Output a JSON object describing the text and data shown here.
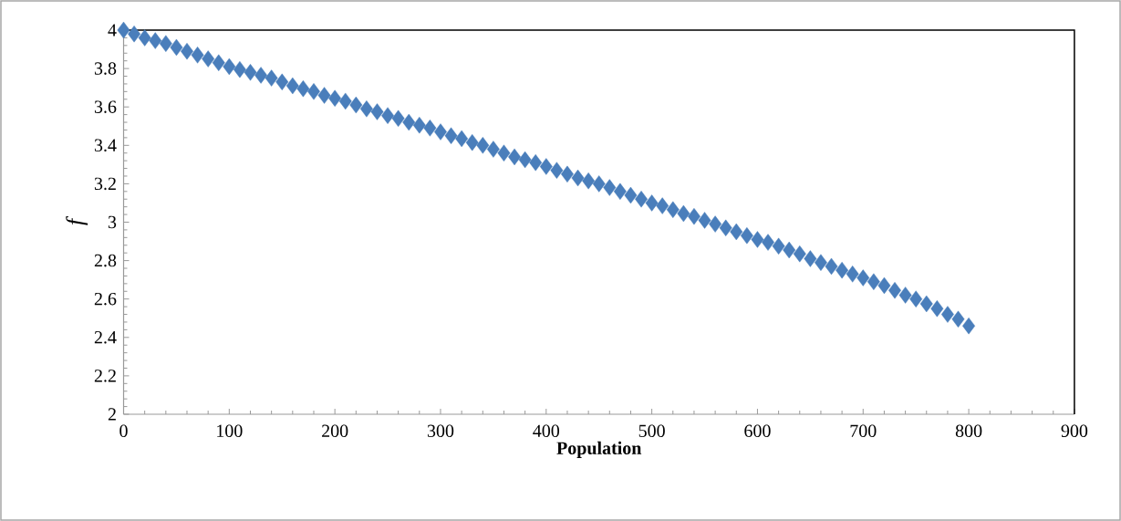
{
  "chart_data": {
    "type": "scatter",
    "xlabel": "Population",
    "ylabel": "f",
    "color": "#4a7ebb",
    "marker": "diamond",
    "xlim": [
      0,
      900
    ],
    "ylim": [
      2,
      4
    ],
    "xticks": [
      0,
      100,
      200,
      300,
      400,
      500,
      600,
      700,
      800,
      900
    ],
    "yticks": [
      2,
      2.2,
      2.4,
      2.6,
      2.8,
      3,
      3.2,
      3.4,
      3.6,
      3.8,
      4
    ],
    "x": [
      0,
      10,
      20,
      30,
      40,
      50,
      60,
      70,
      80,
      90,
      100,
      110,
      120,
      130,
      140,
      150,
      160,
      170,
      180,
      190,
      200,
      210,
      220,
      230,
      240,
      250,
      260,
      270,
      280,
      290,
      300,
      310,
      320,
      330,
      340,
      350,
      360,
      370,
      380,
      390,
      400,
      410,
      420,
      430,
      440,
      450,
      460,
      470,
      480,
      490,
      500,
      510,
      520,
      530,
      540,
      550,
      560,
      570,
      580,
      590,
      600,
      610,
      620,
      630,
      640,
      650,
      660,
      670,
      680,
      690,
      700,
      710,
      720,
      730,
      740,
      750,
      760,
      770,
      780,
      790,
      800
    ],
    "values": [
      4.0,
      3.98,
      3.96,
      3.945,
      3.93,
      3.91,
      3.89,
      3.87,
      3.85,
      3.83,
      3.81,
      3.795,
      3.78,
      3.765,
      3.75,
      3.73,
      3.71,
      3.695,
      3.68,
      3.66,
      3.645,
      3.63,
      3.61,
      3.59,
      3.575,
      3.555,
      3.54,
      3.52,
      3.505,
      3.49,
      3.47,
      3.45,
      3.435,
      3.415,
      3.4,
      3.38,
      3.36,
      3.34,
      3.325,
      3.31,
      3.29,
      3.27,
      3.25,
      3.23,
      3.215,
      3.2,
      3.18,
      3.16,
      3.14,
      3.12,
      3.1,
      3.085,
      3.065,
      3.045,
      3.03,
      3.01,
      2.99,
      2.97,
      2.95,
      2.93,
      2.91,
      2.895,
      2.875,
      2.855,
      2.835,
      2.81,
      2.79,
      2.77,
      2.75,
      2.73,
      2.71,
      2.69,
      2.67,
      2.645,
      2.62,
      2.6,
      2.575,
      2.55,
      2.52,
      2.495,
      2.46
    ]
  }
}
